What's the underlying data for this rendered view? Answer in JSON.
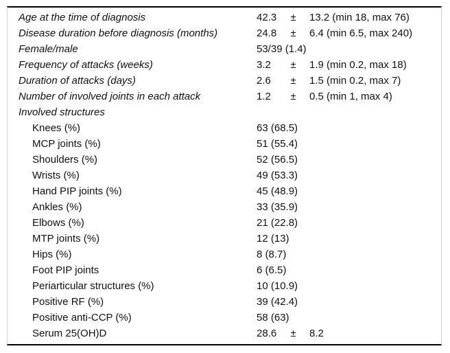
{
  "table": {
    "text_color": "#111111",
    "rule_color": "#000000",
    "side_border_color": "#d6d6d6",
    "plus_minus_symbol": "±",
    "rows": [
      {
        "label": "Age at the time of diagnosis",
        "style": "group",
        "value": {
          "mean": "42.3",
          "pm": "±",
          "sd_range": "13.2 (min 18, max 76)"
        }
      },
      {
        "label": "Disease duration before diagnosis (months)",
        "style": "group",
        "value": {
          "mean": "24.8",
          "pm": "±",
          "sd_range": "6.4 (min 6.5, max 240)"
        }
      },
      {
        "label": "Female/male",
        "style": "group",
        "value": {
          "text": "53/39 (1.4)"
        }
      },
      {
        "label": "Frequency of attacks (weeks)",
        "style": "group",
        "value": {
          "mean": "3.2",
          "pm": "±",
          "sd_range": "1.9 (min 0.2, max 18)"
        }
      },
      {
        "label": "Duration of attacks (days)",
        "style": "group",
        "value": {
          "mean": "2.6",
          "pm": "±",
          "sd_range": "1.5 (min 0.2, max 7)"
        }
      },
      {
        "label": "Number of involved joints in each attack",
        "style": "group",
        "value": {
          "mean": "1.2",
          "pm": "±",
          "sd_range": "0.5 (min 1, max 4)"
        }
      },
      {
        "label": "Involved structures",
        "style": "group",
        "value": {}
      },
      {
        "label": "Knees (%)",
        "style": "sub",
        "value": {
          "text": "63 (68.5)"
        }
      },
      {
        "label": "MCP joints (%)",
        "style": "sub",
        "value": {
          "text": "51 (55.4)"
        }
      },
      {
        "label": "Shoulders (%)",
        "style": "sub",
        "value": {
          "text": "52 (56.5)"
        }
      },
      {
        "label": "Wrists (%)",
        "style": "sub",
        "value": {
          "text": "49 (53.3)"
        }
      },
      {
        "label": "Hand PIP joints (%)",
        "style": "sub",
        "value": {
          "text": "45 (48.9)"
        }
      },
      {
        "label": "Ankles (%)",
        "style": "sub",
        "value": {
          "text": "33 (35.9)"
        }
      },
      {
        "label": "Elbows (%)",
        "style": "sub",
        "value": {
          "text": "21 (22.8)"
        }
      },
      {
        "label": "MTP joints (%)",
        "style": "sub",
        "value": {
          "text": "12 (13)"
        }
      },
      {
        "label": "Hips (%)",
        "style": "sub",
        "value": {
          "text": "8 (8.7)"
        }
      },
      {
        "label": "Foot PIP joints",
        "style": "sub",
        "value": {
          "text": "6 (6.5)"
        }
      },
      {
        "label": "Periarticular structures (%)",
        "style": "sub",
        "value": {
          "text": "10 (10.9)"
        }
      },
      {
        "label": "Positive RF (%)",
        "style": "sub",
        "value": {
          "text": "39 (42.4)"
        }
      },
      {
        "label": "Positive anti-CCP (%)",
        "style": "sub",
        "value": {
          "text": "58 (63)"
        }
      },
      {
        "label": "Serum 25(OH)D",
        "style": "sub",
        "value": {
          "mean": "28.6",
          "pm": "±",
          "sd_range": "8.2"
        }
      }
    ]
  }
}
